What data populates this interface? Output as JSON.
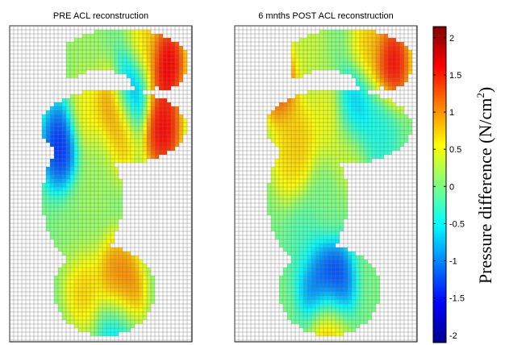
{
  "chart_data": [
    {
      "type": "heatmap",
      "title": "PRE ACL reconstruction",
      "xlabel": "",
      "ylabel": "",
      "grid": true,
      "value_range": [
        -2.1,
        2.15
      ],
      "hotspots": [
        {
          "x": 0.86,
          "y": 0.12,
          "v": 2.1
        },
        {
          "x": 0.74,
          "y": 0.06,
          "v": 0.8
        },
        {
          "x": 0.56,
          "y": 0.27,
          "v": 1.3
        },
        {
          "x": 0.84,
          "y": 0.33,
          "v": 2.0
        },
        {
          "x": 0.6,
          "y": 0.34,
          "v": 1.1
        },
        {
          "x": 0.28,
          "y": 0.38,
          "v": -1.7
        },
        {
          "x": 0.66,
          "y": 0.21,
          "v": -1.2
        },
        {
          "x": 0.42,
          "y": 0.28,
          "v": 0.7
        },
        {
          "x": 0.52,
          "y": 0.4,
          "v": 0.1
        },
        {
          "x": 0.4,
          "y": 0.04,
          "v": 0.2
        },
        {
          "x": 0.45,
          "y": 0.52,
          "v": 0.2
        },
        {
          "x": 0.36,
          "y": 0.66,
          "v": 0.1
        },
        {
          "x": 0.58,
          "y": 0.8,
          "v": 1.2
        },
        {
          "x": 0.64,
          "y": 0.85,
          "v": 1.4
        },
        {
          "x": 0.4,
          "y": 0.82,
          "v": 0.9
        },
        {
          "x": 0.6,
          "y": 0.95,
          "v": -1.0
        }
      ]
    },
    {
      "type": "heatmap",
      "title": "6 mnths POST ACL reconstruction",
      "xlabel": "",
      "ylabel": "",
      "grid": true,
      "value_range": [
        -2.1,
        2.15
      ],
      "hotspots": [
        {
          "x": 0.86,
          "y": 0.12,
          "v": 2.0
        },
        {
          "x": 0.74,
          "y": 0.06,
          "v": 0.9
        },
        {
          "x": 0.4,
          "y": 0.06,
          "v": 0.4
        },
        {
          "x": 0.25,
          "y": 0.18,
          "v": 1.6
        },
        {
          "x": 0.36,
          "y": 0.36,
          "v": 0.9
        },
        {
          "x": 0.5,
          "y": 0.3,
          "v": 0.6
        },
        {
          "x": 0.66,
          "y": 0.27,
          "v": -0.9
        },
        {
          "x": 0.8,
          "y": 0.32,
          "v": -0.5
        },
        {
          "x": 0.62,
          "y": 0.4,
          "v": 0.5
        },
        {
          "x": 0.3,
          "y": 0.42,
          "v": 0.8
        },
        {
          "x": 0.5,
          "y": 0.55,
          "v": 0.0
        },
        {
          "x": 0.38,
          "y": 0.68,
          "v": -0.2
        },
        {
          "x": 0.55,
          "y": 0.82,
          "v": -1.7
        },
        {
          "x": 0.45,
          "y": 0.8,
          "v": -1.4
        },
        {
          "x": 0.52,
          "y": 0.95,
          "v": 1.1
        }
      ]
    }
  ],
  "colorbar": {
    "label": "Pressure difference (N/cm",
    "label_sup": "2",
    "label_end": ")",
    "range": [
      -2.1,
      2.15
    ],
    "ticks": [
      {
        "v": 2,
        "text": "2"
      },
      {
        "v": 1.5,
        "text": "1.5"
      },
      {
        "v": 1,
        "text": "1"
      },
      {
        "v": 0.5,
        "text": "0.5"
      },
      {
        "v": 0,
        "text": "0"
      },
      {
        "v": -0.5,
        "text": "-0.5"
      },
      {
        "v": -1,
        "text": "-1"
      },
      {
        "v": -1.5,
        "text": "-1.5"
      },
      {
        "v": -2,
        "text": "-2"
      }
    ]
  }
}
